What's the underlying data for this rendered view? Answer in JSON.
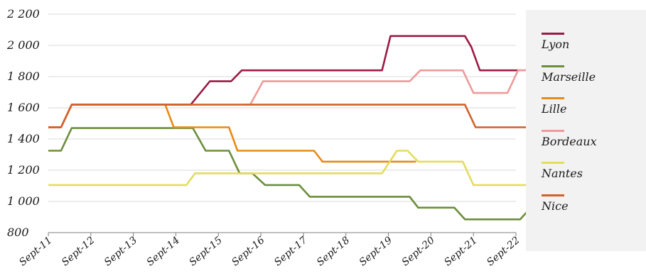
{
  "chart_data": {
    "type": "line",
    "x": [
      "Sept-11",
      "Sept-12",
      "Sept-13",
      "Sept-14",
      "Sept-15",
      "Sept-16",
      "Sept-17",
      "Sept-18",
      "Sept-19",
      "Sept-20",
      "Sept-21",
      "Sept-22"
    ],
    "yticks": [
      "800",
      "1 000",
      "1 200",
      "1 400",
      "1 600",
      "1 800",
      "2 000",
      "2 200"
    ],
    "ylim": [
      800,
      2200
    ],
    "grid": true,
    "legend_position": "right",
    "series": [
      {
        "name": "Lyon",
        "color": "#9b1b44",
        "points": [
          [
            0,
            1475
          ],
          [
            0.3,
            1475
          ],
          [
            0.55,
            1620
          ],
          [
            3.35,
            1620
          ],
          [
            3.8,
            1770
          ],
          [
            4.3,
            1770
          ],
          [
            4.55,
            1840
          ],
          [
            7.85,
            1840
          ],
          [
            8.05,
            2060
          ],
          [
            9.8,
            2060
          ],
          [
            9.95,
            1990
          ],
          [
            10.15,
            1840
          ],
          [
            11.55,
            1840
          ]
        ]
      },
      {
        "name": "Marseille",
        "color": "#6b8e3a",
        "points": [
          [
            0,
            1325
          ],
          [
            0.3,
            1325
          ],
          [
            0.55,
            1470
          ],
          [
            3.4,
            1470
          ],
          [
            3.7,
            1325
          ],
          [
            4.25,
            1325
          ],
          [
            4.5,
            1180
          ],
          [
            4.8,
            1180
          ],
          [
            5.1,
            1105
          ],
          [
            5.9,
            1105
          ],
          [
            6.15,
            1030
          ],
          [
            8.5,
            1030
          ],
          [
            8.7,
            960
          ],
          [
            9.55,
            960
          ],
          [
            9.8,
            885
          ],
          [
            11.1,
            885
          ],
          [
            11.35,
            960
          ],
          [
            11.85,
            960
          ]
        ]
      },
      {
        "name": "Lille",
        "color": "#e88a16",
        "points": [
          [
            0,
            1475
          ],
          [
            0.3,
            1475
          ],
          [
            0.55,
            1620
          ],
          [
            2.75,
            1620
          ],
          [
            2.95,
            1475
          ],
          [
            4.25,
            1475
          ],
          [
            4.45,
            1325
          ],
          [
            6.25,
            1325
          ],
          [
            6.45,
            1255
          ],
          [
            8.65,
            1255
          ]
        ]
      },
      {
        "name": "Bordeaux",
        "color": "#ef9a9a",
        "points": [
          [
            4.6,
            1620
          ],
          [
            4.75,
            1620
          ],
          [
            5.05,
            1770
          ],
          [
            8.5,
            1770
          ],
          [
            8.75,
            1840
          ],
          [
            9.75,
            1840
          ],
          [
            10.0,
            1695
          ],
          [
            10.8,
            1695
          ],
          [
            11.05,
            1840
          ],
          [
            11.85,
            1840
          ]
        ]
      },
      {
        "name": "Nantes",
        "color": "#e3dd5c",
        "points": [
          [
            0,
            1105
          ],
          [
            3.25,
            1105
          ],
          [
            3.45,
            1180
          ],
          [
            7.6,
            1180
          ],
          [
            7.85,
            1180
          ],
          [
            8.2,
            1325
          ],
          [
            8.45,
            1325
          ],
          [
            8.7,
            1255
          ],
          [
            9.75,
            1255
          ],
          [
            10.0,
            1105
          ],
          [
            11.85,
            1105
          ]
        ]
      },
      {
        "name": "Nice",
        "color": "#d2612a",
        "points": [
          [
            0,
            1475
          ],
          [
            0.3,
            1475
          ],
          [
            0.55,
            1620
          ],
          [
            9.8,
            1620
          ],
          [
            10.05,
            1475
          ],
          [
            11.85,
            1475
          ]
        ]
      }
    ]
  }
}
